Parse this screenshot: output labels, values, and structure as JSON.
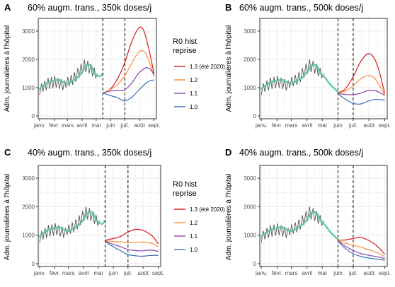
{
  "figure": {
    "background": "#ffffff",
    "panel_border": "#333333",
    "grid_color": "#ebebeb",
    "axis_text_color": "#4d4d4d",
    "observed_color": "#555555",
    "fit_color": "#5cc5a2"
  },
  "legend": {
    "title_line1": "R0 hist",
    "title_line2": "reprise",
    "items": [
      {
        "label": "1.3 (été 2020)",
        "color": "#d7191c"
      },
      {
        "label": "1.2",
        "color": "#fd8d3c"
      },
      {
        "label": "1.1",
        "color": "#8e44ad"
      },
      {
        "label": "1.0",
        "color": "#3b6fb6"
      }
    ]
  },
  "chart_data": [
    {
      "type": "line",
      "letter": "A",
      "title": "60% augm. trans., 350k doses/j",
      "ylabel": "Adm. journalières à l'hôpital",
      "x_tick_labels": [
        "janv.",
        "févr.",
        "mars",
        "avril",
        "mai",
        "juin",
        "juil.",
        "août",
        "sept."
      ],
      "x_ticks": [
        0,
        31,
        59,
        90,
        120,
        151,
        181,
        212,
        243
      ],
      "xlim": [
        -3,
        248
      ],
      "ylim": [
        -100,
        3450
      ],
      "y_ticks": [
        0,
        1000,
        2000,
        3000
      ],
      "vlines": [
        134,
        181
      ],
      "observed": {
        "x": [
          0,
          4,
          7,
          11,
          14,
          18,
          21,
          25,
          28,
          32,
          35,
          39,
          42,
          46,
          49,
          53,
          56,
          60,
          63,
          67,
          70,
          74,
          77,
          81,
          84,
          88,
          91,
          95,
          98,
          102,
          105,
          109,
          112,
          116,
          119,
          123
        ],
        "y": [
          750,
          1150,
          850,
          1250,
          900,
          1350,
          950,
          1380,
          980,
          1420,
          1000,
          1350,
          950,
          1300,
          900,
          1250,
          1000,
          1380,
          1050,
          1450,
          1100,
          1550,
          1200,
          1700,
          1350,
          1850,
          1500,
          2000,
          1550,
          1950,
          1500,
          1850,
          1400,
          1700,
          1350,
          1500
        ]
      },
      "fit": {
        "x": [
          0,
          10,
          20,
          30,
          40,
          50,
          60,
          70,
          80,
          90,
          100,
          110,
          115,
          120,
          128,
          134
        ],
        "y": [
          950,
          1100,
          1200,
          1250,
          1280,
          1200,
          1150,
          1250,
          1350,
          1550,
          1800,
          1750,
          1550,
          1450,
          1400,
          1500
        ]
      },
      "series": [
        {
          "name": "1.3 (été 2020)",
          "x": [
            134,
            150,
            165,
            180,
            195,
            210,
            220,
            230,
            243
          ],
          "y": [
            810,
            950,
            1300,
            1850,
            2600,
            3100,
            3050,
            2500,
            1500
          ]
        },
        {
          "name": "1.2",
          "x": [
            134,
            150,
            165,
            180,
            195,
            210,
            222,
            232,
            243
          ],
          "y": [
            810,
            930,
            1100,
            1400,
            1850,
            2250,
            2280,
            1950,
            1400
          ]
        },
        {
          "name": "1.1",
          "x": [
            134,
            150,
            165,
            180,
            195,
            210,
            225,
            235,
            243
          ],
          "y": [
            810,
            880,
            900,
            920,
            1150,
            1500,
            1700,
            1650,
            1450
          ]
        },
        {
          "name": "1.0",
          "x": [
            134,
            150,
            165,
            180,
            195,
            210,
            225,
            235,
            243
          ],
          "y": [
            810,
            720,
            650,
            530,
            650,
            900,
            1150,
            1250,
            1270
          ]
        }
      ]
    },
    {
      "type": "line",
      "letter": "B",
      "title": "60% augm. trans., 500k doses/j",
      "ylabel": "Adm. journalières à l'hôpital",
      "x_tick_labels": [
        "janv.",
        "févr.",
        "mars",
        "avril",
        "mai",
        "juin",
        "juil.",
        "août",
        "sept."
      ],
      "x_ticks": [
        0,
        31,
        59,
        90,
        120,
        151,
        181,
        212,
        243
      ],
      "xlim": [
        -3,
        248
      ],
      "ylim": [
        -100,
        3450
      ],
      "y_ticks": [
        0,
        1000,
        2000,
        3000
      ],
      "vlines": [
        151,
        181
      ],
      "observed": {
        "x": [
          0,
          4,
          7,
          11,
          14,
          18,
          21,
          25,
          28,
          32,
          35,
          39,
          42,
          46,
          49,
          53,
          56,
          60,
          63,
          67,
          70,
          74,
          77,
          81,
          84,
          88,
          91,
          95,
          98,
          102,
          105,
          109,
          112,
          116,
          119,
          123
        ],
        "y": [
          750,
          1150,
          850,
          1250,
          900,
          1350,
          950,
          1380,
          980,
          1420,
          1000,
          1350,
          950,
          1300,
          900,
          1250,
          1000,
          1380,
          1050,
          1450,
          1100,
          1550,
          1200,
          1700,
          1350,
          1850,
          1500,
          2000,
          1550,
          1950,
          1500,
          1850,
          1400,
          1700,
          1350,
          1500
        ]
      },
      "fit": {
        "x": [
          0,
          10,
          20,
          30,
          40,
          50,
          60,
          70,
          80,
          90,
          100,
          110,
          115,
          120,
          128,
          134,
          142,
          151
        ],
        "y": [
          950,
          1100,
          1200,
          1250,
          1280,
          1200,
          1150,
          1250,
          1350,
          1550,
          1800,
          1750,
          1550,
          1450,
          1300,
          1150,
          1000,
          850
        ]
      },
      "series": [
        {
          "name": "1.3 (été 2020)",
          "x": [
            151,
            165,
            180,
            195,
            210,
            222,
            232,
            243
          ],
          "y": [
            820,
            950,
            1350,
            1900,
            2200,
            2050,
            1600,
            800
          ]
        },
        {
          "name": "1.2",
          "x": [
            151,
            165,
            180,
            195,
            210,
            222,
            232,
            243
          ],
          "y": [
            810,
            880,
            1050,
            1300,
            1430,
            1350,
            1100,
            750
          ]
        },
        {
          "name": "1.1",
          "x": [
            151,
            165,
            180,
            195,
            210,
            222,
            232,
            243
          ],
          "y": [
            800,
            760,
            750,
            800,
            900,
            900,
            840,
            720
          ]
        },
        {
          "name": "1.0",
          "x": [
            151,
            165,
            180,
            195,
            210,
            222,
            232,
            243
          ],
          "y": [
            780,
            600,
            450,
            420,
            520,
            580,
            580,
            560
          ]
        }
      ]
    },
    {
      "type": "line",
      "letter": "C",
      "title": "40% augm. trans., 350k doses/j",
      "ylabel": "Adm. journalières à l'hôpital",
      "x_tick_labels": [
        "janv.",
        "févr.",
        "mars",
        "avril",
        "mai",
        "juin",
        "juil.",
        "août",
        "sept."
      ],
      "x_ticks": [
        0,
        31,
        59,
        90,
        120,
        151,
        181,
        212,
        243
      ],
      "xlim": [
        -3,
        248
      ],
      "ylim": [
        -100,
        3450
      ],
      "y_ticks": [
        0,
        1000,
        2000,
        3000
      ],
      "vlines": [
        134,
        181
      ],
      "observed": {
        "x": [
          0,
          4,
          7,
          11,
          14,
          18,
          21,
          25,
          28,
          32,
          35,
          39,
          42,
          46,
          49,
          53,
          56,
          60,
          63,
          67,
          70,
          74,
          77,
          81,
          84,
          88,
          91,
          95,
          98,
          102,
          105,
          109,
          112,
          116,
          119,
          123
        ],
        "y": [
          750,
          1150,
          850,
          1250,
          900,
          1350,
          950,
          1380,
          980,
          1420,
          1000,
          1350,
          950,
          1300,
          900,
          1250,
          1000,
          1380,
          1050,
          1450,
          1100,
          1550,
          1200,
          1700,
          1350,
          1850,
          1500,
          2000,
          1550,
          1950,
          1500,
          1850,
          1400,
          1700,
          1350,
          1500
        ]
      },
      "fit": {
        "x": [
          0,
          10,
          20,
          30,
          40,
          50,
          60,
          70,
          80,
          90,
          100,
          110,
          115,
          120,
          128,
          134
        ],
        "y": [
          950,
          1100,
          1200,
          1250,
          1280,
          1200,
          1150,
          1250,
          1350,
          1550,
          1800,
          1750,
          1550,
          1450,
          1400,
          1500
        ]
      },
      "series": [
        {
          "name": "1.3 (été 2020)",
          "x": [
            134,
            150,
            165,
            180,
            195,
            210,
            222,
            232,
            243
          ],
          "y": [
            820,
            880,
            950,
            1100,
            1200,
            1180,
            1080,
            950,
            700
          ]
        },
        {
          "name": "1.2",
          "x": [
            134,
            150,
            165,
            180,
            195,
            210,
            222,
            232,
            243
          ],
          "y": [
            800,
            780,
            770,
            740,
            750,
            760,
            740,
            700,
            600
          ]
        },
        {
          "name": "1.1",
          "x": [
            134,
            150,
            165,
            180,
            195,
            210,
            222,
            232,
            243
          ],
          "y": [
            790,
            680,
            600,
            500,
            460,
            450,
            470,
            470,
            430
          ]
        },
        {
          "name": "1.0",
          "x": [
            134,
            150,
            165,
            180,
            195,
            210,
            222,
            232,
            243
          ],
          "y": [
            780,
            600,
            460,
            320,
            280,
            260,
            280,
            290,
            290
          ]
        }
      ]
    },
    {
      "type": "line",
      "letter": "D",
      "title": "40% augm. trans., 500k doses/j",
      "ylabel": "Adm. journalières à l'hôpital",
      "x_tick_labels": [
        "janv.",
        "févr.",
        "mars",
        "avril",
        "mai",
        "juin",
        "juil.",
        "août",
        "sept."
      ],
      "x_ticks": [
        0,
        31,
        59,
        90,
        120,
        151,
        181,
        212,
        243
      ],
      "xlim": [
        -3,
        248
      ],
      "ylim": [
        -100,
        3450
      ],
      "y_ticks": [
        0,
        1000,
        2000,
        3000
      ],
      "vlines": [
        151,
        181
      ],
      "observed": {
        "x": [
          0,
          4,
          7,
          11,
          14,
          18,
          21,
          25,
          28,
          32,
          35,
          39,
          42,
          46,
          49,
          53,
          56,
          60,
          63,
          67,
          70,
          74,
          77,
          81,
          84,
          88,
          91,
          95,
          98,
          102,
          105,
          109,
          112,
          116,
          119,
          123
        ],
        "y": [
          750,
          1150,
          850,
          1250,
          900,
          1350,
          950,
          1380,
          980,
          1420,
          1000,
          1350,
          950,
          1300,
          900,
          1250,
          1000,
          1380,
          1050,
          1450,
          1100,
          1550,
          1200,
          1700,
          1350,
          1850,
          1500,
          2000,
          1550,
          1950,
          1500,
          1850,
          1400,
          1700,
          1350,
          1500
        ]
      },
      "fit": {
        "x": [
          0,
          10,
          20,
          30,
          40,
          50,
          60,
          70,
          80,
          90,
          100,
          110,
          115,
          120,
          128,
          134,
          142,
          151
        ],
        "y": [
          950,
          1100,
          1200,
          1250,
          1280,
          1200,
          1150,
          1250,
          1350,
          1550,
          1800,
          1750,
          1550,
          1450,
          1300,
          1150,
          1000,
          850
        ]
      },
      "series": [
        {
          "name": "1.3 (été 2020)",
          "x": [
            151,
            165,
            180,
            195,
            210,
            222,
            232,
            243
          ],
          "y": [
            830,
            830,
            880,
            920,
            830,
            700,
            550,
            330
          ]
        },
        {
          "name": "1.2",
          "x": [
            151,
            165,
            180,
            195,
            210,
            222,
            232,
            243
          ],
          "y": [
            810,
            720,
            650,
            580,
            500,
            430,
            360,
            250
          ]
        },
        {
          "name": "1.1",
          "x": [
            151,
            165,
            180,
            195,
            210,
            222,
            232,
            243
          ],
          "y": [
            800,
            620,
            470,
            360,
            300,
            260,
            230,
            180
          ]
        },
        {
          "name": "1.0",
          "x": [
            151,
            165,
            180,
            195,
            210,
            222,
            232,
            243
          ],
          "y": [
            790,
            540,
            360,
            260,
            200,
            170,
            150,
            120
          ]
        }
      ]
    }
  ]
}
